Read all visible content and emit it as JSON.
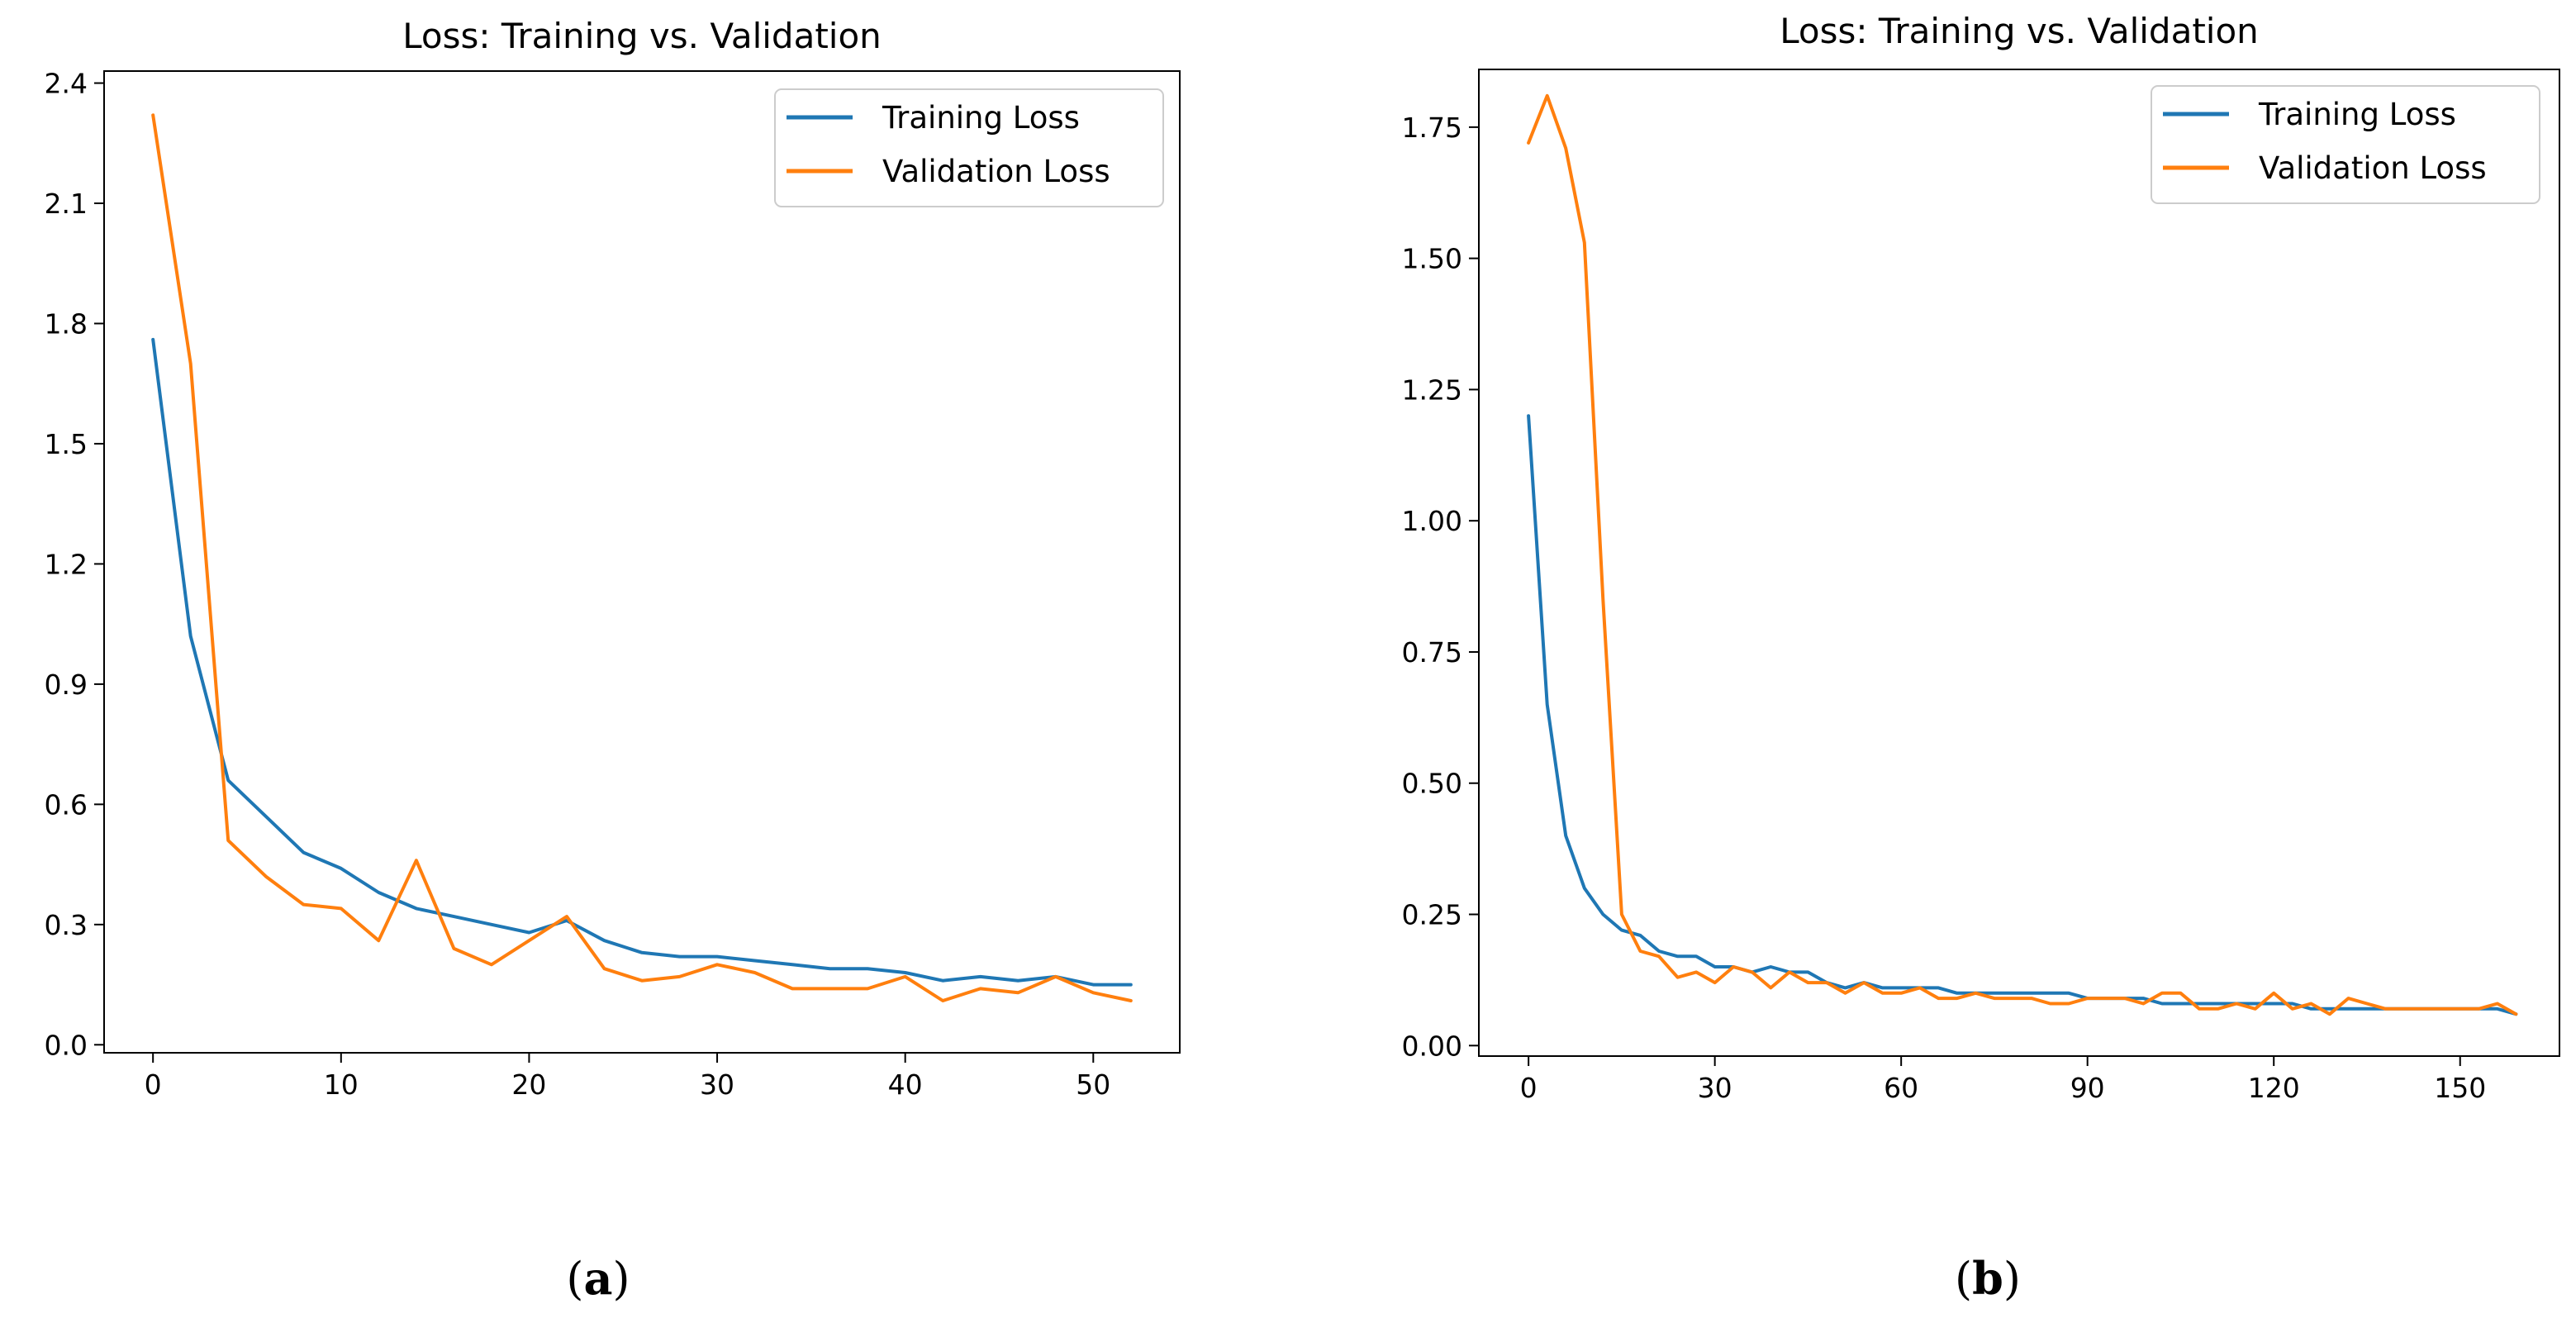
{
  "figure": {
    "panels": [
      {
        "label_open": "(",
        "label_letter": "a",
        "label_close": ")"
      },
      {
        "label_open": "(",
        "label_letter": "b",
        "label_close": ")"
      }
    ]
  },
  "chart_data": [
    {
      "type": "line",
      "title": "Loss: Training vs. Validation",
      "xlabel": "",
      "ylabel": "",
      "xlim": [
        -2.6,
        54.6
      ],
      "ylim": [
        -0.02,
        2.43
      ],
      "xticks": [
        0,
        10,
        20,
        30,
        40,
        50
      ],
      "xtick_labels": [
        "0",
        "10",
        "20",
        "30",
        "40",
        "50"
      ],
      "yticks": [
        0.0,
        0.3,
        0.6,
        0.9,
        1.2,
        1.5,
        1.8,
        2.1,
        2.4
      ],
      "ytick_labels": [
        "0.0",
        "0.3",
        "0.6",
        "0.9",
        "1.2",
        "1.5",
        "1.8",
        "2.1",
        "2.4"
      ],
      "grid": false,
      "legend": "top-right",
      "series": [
        {
          "name": "Training Loss",
          "color": "#1f77b4",
          "x": [
            0,
            2,
            4,
            6,
            8,
            10,
            12,
            14,
            16,
            18,
            20,
            22,
            24,
            26,
            28,
            30,
            32,
            34,
            36,
            38,
            40,
            42,
            44,
            46,
            48,
            50,
            52
          ],
          "y": [
            1.76,
            1.02,
            0.66,
            0.57,
            0.48,
            0.44,
            0.38,
            0.34,
            0.32,
            0.3,
            0.28,
            0.31,
            0.26,
            0.23,
            0.22,
            0.22,
            0.21,
            0.2,
            0.19,
            0.19,
            0.18,
            0.16,
            0.17,
            0.16,
            0.17,
            0.15,
            0.15
          ]
        },
        {
          "name": "Validation Loss",
          "color": "#ff7f0e",
          "x": [
            0,
            2,
            4,
            6,
            8,
            10,
            12,
            14,
            16,
            18,
            20,
            22,
            24,
            26,
            28,
            30,
            32,
            34,
            36,
            38,
            40,
            42,
            44,
            46,
            48,
            50,
            52
          ],
          "y": [
            2.32,
            1.7,
            0.51,
            0.42,
            0.35,
            0.34,
            0.26,
            0.46,
            0.24,
            0.2,
            0.26,
            0.32,
            0.19,
            0.16,
            0.17,
            0.2,
            0.18,
            0.14,
            0.14,
            0.14,
            0.17,
            0.11,
            0.14,
            0.13,
            0.17,
            0.13,
            0.11
          ]
        }
      ]
    },
    {
      "type": "line",
      "title": "Loss: Training vs. Validation",
      "xlabel": "",
      "ylabel": "",
      "xlim": [
        -8,
        166
      ],
      "ylim": [
        -0.02,
        1.86
      ],
      "xticks": [
        0,
        30,
        60,
        90,
        120,
        150
      ],
      "xtick_labels": [
        "0",
        "30",
        "60",
        "90",
        "120",
        "150"
      ],
      "yticks": [
        0.0,
        0.25,
        0.5,
        0.75,
        1.0,
        1.25,
        1.5,
        1.75
      ],
      "ytick_labels": [
        "0.00",
        "0.25",
        "0.50",
        "0.75",
        "1.00",
        "1.25",
        "1.50",
        "1.75"
      ],
      "grid": false,
      "legend": "top-right",
      "series": [
        {
          "name": "Training Loss",
          "color": "#1f77b4",
          "x": [
            0,
            3,
            6,
            9,
            12,
            15,
            18,
            21,
            24,
            27,
            30,
            33,
            36,
            39,
            42,
            45,
            48,
            51,
            54,
            57,
            60,
            63,
            66,
            69,
            72,
            75,
            78,
            81,
            84,
            87,
            90,
            93,
            96,
            99,
            102,
            105,
            108,
            111,
            114,
            117,
            120,
            123,
            126,
            129,
            132,
            135,
            138,
            141,
            144,
            147,
            150,
            153,
            156,
            159
          ],
          "y": [
            1.2,
            0.65,
            0.4,
            0.3,
            0.25,
            0.22,
            0.21,
            0.18,
            0.17,
            0.17,
            0.15,
            0.15,
            0.14,
            0.15,
            0.14,
            0.14,
            0.12,
            0.11,
            0.12,
            0.11,
            0.11,
            0.11,
            0.11,
            0.1,
            0.1,
            0.1,
            0.1,
            0.1,
            0.1,
            0.1,
            0.09,
            0.09,
            0.09,
            0.09,
            0.08,
            0.08,
            0.08,
            0.08,
            0.08,
            0.08,
            0.08,
            0.08,
            0.07,
            0.07,
            0.07,
            0.07,
            0.07,
            0.07,
            0.07,
            0.07,
            0.07,
            0.07,
            0.07,
            0.06
          ]
        },
        {
          "name": "Validation Loss",
          "color": "#ff7f0e",
          "x": [
            0,
            3,
            6,
            9,
            12,
            15,
            18,
            21,
            24,
            27,
            30,
            33,
            36,
            39,
            42,
            45,
            48,
            51,
            54,
            57,
            60,
            63,
            66,
            69,
            72,
            75,
            78,
            81,
            84,
            87,
            90,
            93,
            96,
            99,
            102,
            105,
            108,
            111,
            114,
            117,
            120,
            123,
            126,
            129,
            132,
            135,
            138,
            141,
            144,
            147,
            150,
            153,
            156,
            159
          ],
          "y": [
            1.72,
            1.81,
            1.71,
            1.53,
            0.85,
            0.25,
            0.18,
            0.17,
            0.13,
            0.14,
            0.12,
            0.15,
            0.14,
            0.11,
            0.14,
            0.12,
            0.12,
            0.1,
            0.12,
            0.1,
            0.1,
            0.11,
            0.09,
            0.09,
            0.1,
            0.09,
            0.09,
            0.09,
            0.08,
            0.08,
            0.09,
            0.09,
            0.09,
            0.08,
            0.1,
            0.1,
            0.07,
            0.07,
            0.08,
            0.07,
            0.1,
            0.07,
            0.08,
            0.06,
            0.09,
            0.08,
            0.07,
            0.07,
            0.07,
            0.07,
            0.07,
            0.07,
            0.08,
            0.06
          ]
        }
      ]
    }
  ]
}
